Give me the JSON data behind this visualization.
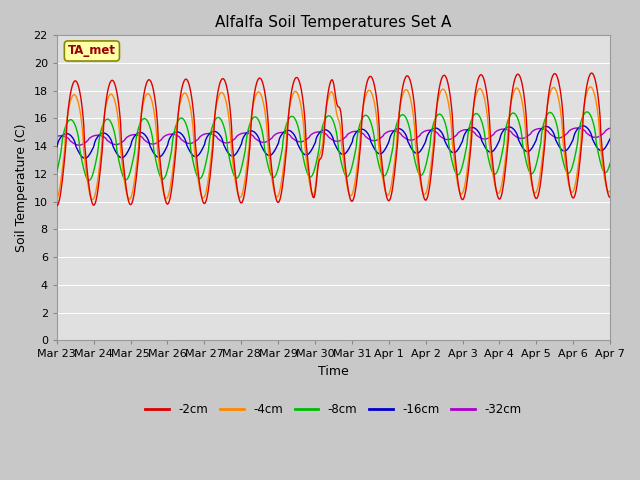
{
  "title": "Alfalfa Soil Temperatures Set A",
  "xlabel": "Time",
  "ylabel": "Soil Temperature (C)",
  "ylim": [
    0,
    22
  ],
  "yticks": [
    0,
    2,
    4,
    6,
    8,
    10,
    12,
    14,
    16,
    18,
    20,
    22
  ],
  "colors": {
    "-2cm": "#dd0000",
    "-4cm": "#ff8800",
    "-8cm": "#00bb00",
    "-16cm": "#0000cc",
    "-32cm": "#aa00cc"
  },
  "annotation_text": "TA_met",
  "fig_facecolor": "#c8c8c8",
  "ax_facecolor": "#e0e0e0",
  "grid_color": "#ffffff"
}
